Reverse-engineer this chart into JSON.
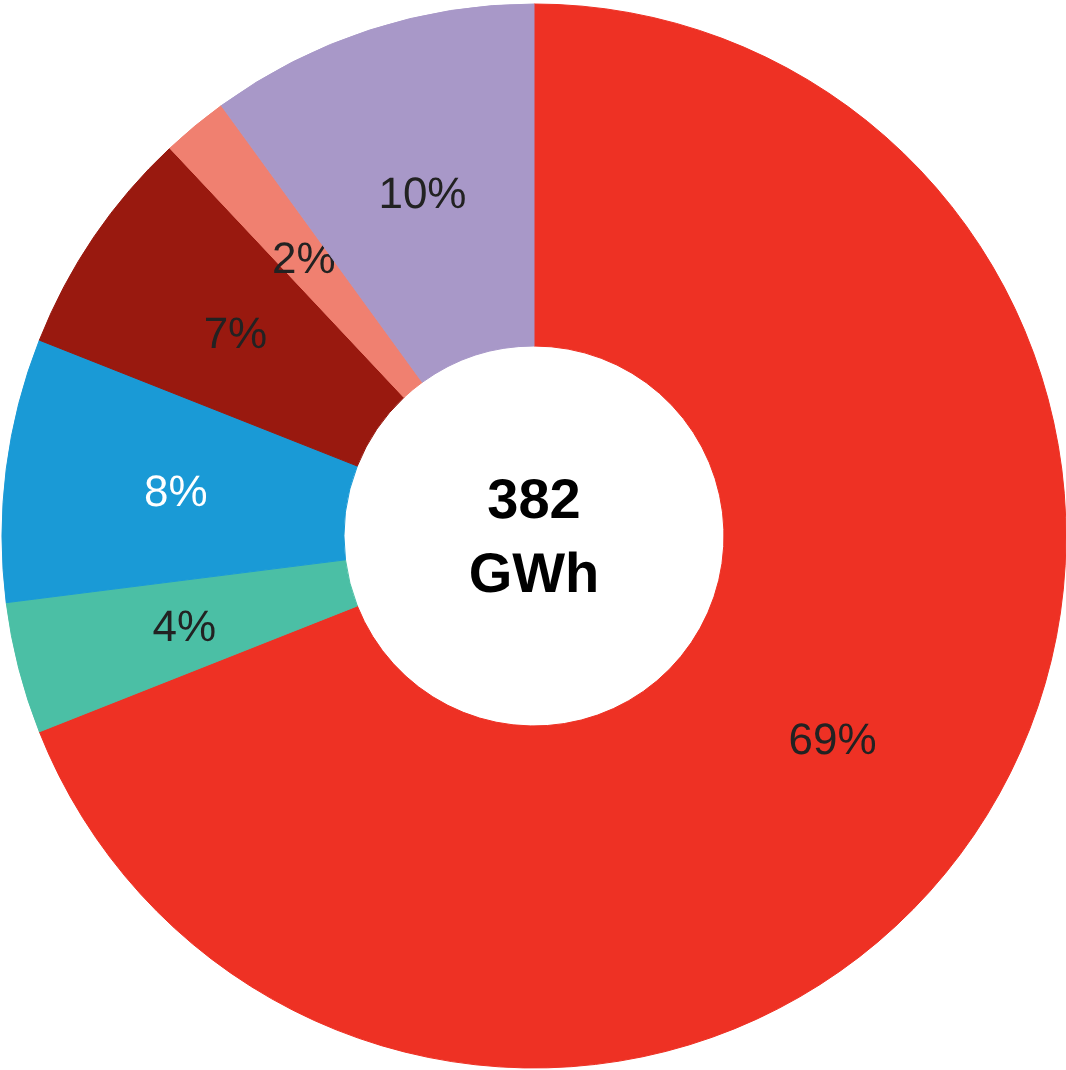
{
  "chart_data": {
    "type": "donut",
    "categories": [
      null,
      null,
      null,
      null,
      null,
      null
    ],
    "values": [
      69,
      4,
      8,
      7,
      2,
      10
    ],
    "colors": [
      "#ee3124",
      "#4bbfa5",
      "#1a9ad6",
      "#99190f",
      "#f08070",
      "#a898c8"
    ],
    "value_labels": [
      "69%",
      "4%",
      "8%",
      "7%",
      "2%",
      "10%"
    ],
    "annotations": [
      "382\nGWh"
    ]
  }
}
